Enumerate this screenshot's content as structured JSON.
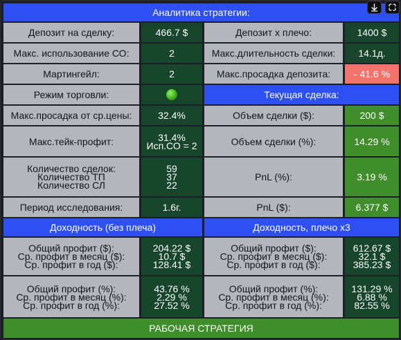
{
  "title": "Аналитика стратегии:",
  "icons": {
    "download": "download-icon",
    "expand": "expand-icon"
  },
  "colors": {
    "header": "#2e4ff2",
    "label": "#b3b6bd",
    "value_dark": "#17462c",
    "value_green": "#3f8d2b",
    "value_red": "#f3746c",
    "status_dot": "#3eb419"
  },
  "left": {
    "deposit_label": "Депозит на сделку:",
    "deposit_value": "466.7 $",
    "max_so_label": "Макс. использование СО:",
    "max_so_value": "2",
    "martingale_label": "Мартингейл:",
    "martingale_value": "2",
    "mode_label": "Режим торговли:",
    "max_dd_avg_label": "Макс.просадка от ср.цены:",
    "max_dd_avg_value": "32.4%",
    "max_tp_label": "Макс.тейк-профит:",
    "max_tp_value_1": "31.4%",
    "max_tp_value_2": "Исп.СО = 2",
    "trades_labels": [
      "Количество сделок:",
      "Количество ТП",
      "Количество СЛ"
    ],
    "trades_values": [
      "59",
      "37",
      "22"
    ],
    "period_label": "Период исследования:",
    "period_value": "1.6г."
  },
  "right": {
    "deposit_lev_label": "Депозит x плечо:",
    "deposit_lev_value": "1400 $",
    "max_duration_label": "Макс.длительность сделки:",
    "max_duration_value": "14.1д.",
    "max_dd_label": "Макс.просадка депозита:",
    "max_dd_value": "- 41.6 %",
    "current_header": "Текущая сделка:",
    "volume_label": "Объем сделки ($):",
    "volume_value": "200 $",
    "volume_pct_label": "Объем сделки (%):",
    "volume_pct_value": "14.29 %",
    "pnl_pct_label": "PnL (%):",
    "pnl_pct_value": "3.19 %",
    "pnl_usd_label": "PnL ($):",
    "pnl_usd_value": "6.377 $"
  },
  "income_no_lev": {
    "header": "Доходность (без плеча)",
    "usd_labels": [
      "Общий профит ($):",
      "Ср. профит в месяц ($):",
      "Ср. профит в год ($):"
    ],
    "usd_values": [
      "204.22 $",
      "10.7 $",
      "128.41 $"
    ],
    "pct_labels": [
      "Общий профит (%):",
      "Ср. профит в месяц (%):",
      "Ср. профит в год (%):"
    ],
    "pct_values": [
      "43.76 %",
      "2.29 %",
      "27.52 %"
    ]
  },
  "income_lev": {
    "header": "Доходность, плечо x3",
    "usd_labels": [
      "Общий профит ($):",
      "Ср. профит в месяц ($):",
      "Ср. профит в год ($):"
    ],
    "usd_values": [
      "612.67 $",
      "32.1 $",
      "385.23 $"
    ],
    "pct_labels": [
      "Общий профит (%):",
      "Ср. профит в месяц (%):",
      "Ср. профит в год (%):"
    ],
    "pct_values": [
      "131.29 %",
      "6.88 %",
      "82.55 %"
    ]
  },
  "footer": "РАБОЧАЯ СТРАТЕГИЯ"
}
